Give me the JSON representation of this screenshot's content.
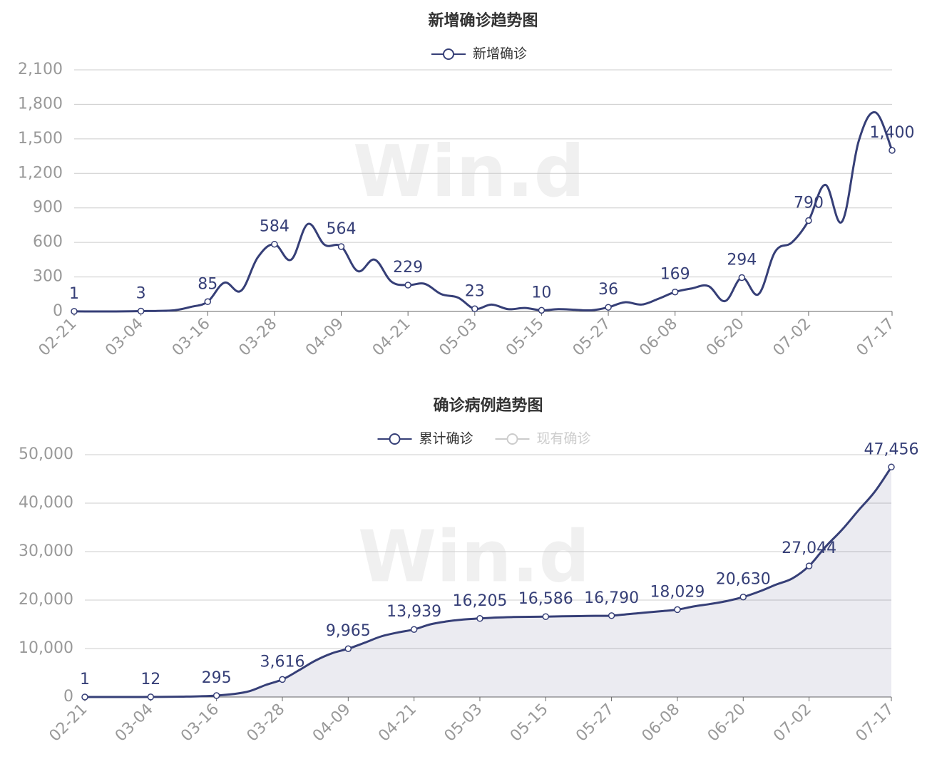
{
  "chart_data": [
    {
      "type": "line",
      "title": "新增确诊趋势图",
      "watermark": "Win.d",
      "categories": [
        "02-21",
        null,
        null,
        null,
        "03-04",
        null,
        null,
        null,
        "03-16",
        null,
        null,
        null,
        "03-28",
        null,
        null,
        null,
        "04-09",
        null,
        null,
        null,
        "04-21",
        null,
        null,
        null,
        "05-03",
        null,
        null,
        null,
        "05-15",
        null,
        null,
        null,
        "05-27",
        null,
        null,
        null,
        "06-08",
        null,
        null,
        null,
        "06-20",
        null,
        null,
        null,
        "07-02",
        null,
        null,
        null,
        null,
        "07-17"
      ],
      "series": [
        {
          "name": "新增确诊",
          "color": "#363f77",
          "area": false,
          "values": [
            1,
            0,
            0,
            1,
            3,
            5,
            10,
            40,
            85,
            250,
            180,
            470,
            584,
            450,
            760,
            580,
            564,
            350,
            450,
            260,
            229,
            240,
            150,
            120,
            23,
            60,
            20,
            30,
            10,
            20,
            15,
            10,
            36,
            80,
            60,
            110,
            169,
            200,
            220,
            90,
            294,
            150,
            520,
            600,
            790,
            1100,
            780,
            1480,
            1730,
            1400
          ],
          "value_labels": [
            "1",
            null,
            null,
            null,
            "3",
            null,
            null,
            null,
            "85",
            null,
            null,
            null,
            "584",
            null,
            null,
            null,
            "564",
            null,
            null,
            null,
            "229",
            null,
            null,
            null,
            "23",
            null,
            null,
            null,
            "10",
            null,
            null,
            null,
            "36",
            null,
            null,
            null,
            "169",
            null,
            null,
            null,
            "294",
            null,
            null,
            null,
            "790",
            null,
            null,
            null,
            null,
            "1,400"
          ]
        }
      ],
      "ylim": [
        0,
        2100
      ],
      "yticks": [
        0,
        300,
        600,
        900,
        {
          "value": 1200,
          "label": "1,200"
        },
        {
          "value": 1500,
          "label": "1,500"
        },
        {
          "value": 1800,
          "label": "1,800"
        },
        {
          "value": 2100,
          "label": "2,100"
        }
      ],
      "grid": true
    },
    {
      "type": "line",
      "title": "确诊病例趋势图",
      "watermark": "Win.d",
      "categories": [
        "02-21",
        null,
        null,
        null,
        "03-04",
        null,
        null,
        null,
        "03-16",
        null,
        null,
        null,
        "03-28",
        null,
        null,
        null,
        "04-09",
        null,
        null,
        null,
        "04-21",
        null,
        null,
        null,
        "05-03",
        null,
        null,
        null,
        "05-15",
        null,
        null,
        null,
        "05-27",
        null,
        null,
        null,
        "06-08",
        null,
        null,
        null,
        "06-20",
        null,
        null,
        null,
        "07-02",
        null,
        null,
        null,
        null,
        "07-17"
      ],
      "series": [
        {
          "name": "累计确诊",
          "color": "#363f77",
          "area": true,
          "values": [
            1,
            3,
            5,
            8,
            12,
            40,
            80,
            150,
            295,
            600,
            1200,
            2500,
            3616,
            5500,
            7500,
            9000,
            9965,
            11200,
            12500,
            13300,
            13939,
            15000,
            15600,
            16000,
            16205,
            16400,
            16500,
            16550,
            16586,
            16650,
            16700,
            16750,
            16790,
            17100,
            17400,
            17700,
            18029,
            18700,
            19200,
            19800,
            20630,
            21800,
            23200,
            24500,
            27044,
            31000,
            34500,
            38500,
            42400,
            47456
          ],
          "value_labels": [
            "1",
            null,
            null,
            null,
            "12",
            null,
            null,
            null,
            "295",
            null,
            null,
            null,
            "3,616",
            null,
            null,
            null,
            "9,965",
            null,
            null,
            null,
            "13,939",
            null,
            null,
            null,
            "16,205",
            null,
            null,
            null,
            "16,586",
            null,
            null,
            null,
            "16,790",
            null,
            null,
            null,
            "18,029",
            null,
            null,
            null,
            "20,630",
            null,
            null,
            null,
            "27,044",
            null,
            null,
            null,
            null,
            "47,456"
          ]
        },
        {
          "name": "现有确诊",
          "color": "#cccccc",
          "visible": false
        }
      ],
      "ylim": [
        0,
        50000
      ],
      "yticks": [
        0,
        {
          "value": 10000,
          "label": "10,000"
        },
        {
          "value": 20000,
          "label": "20,000"
        },
        {
          "value": 30000,
          "label": "30,000"
        },
        {
          "value": 40000,
          "label": "40,000"
        },
        {
          "value": 50000,
          "label": "50,000"
        }
      ],
      "grid": true
    }
  ]
}
